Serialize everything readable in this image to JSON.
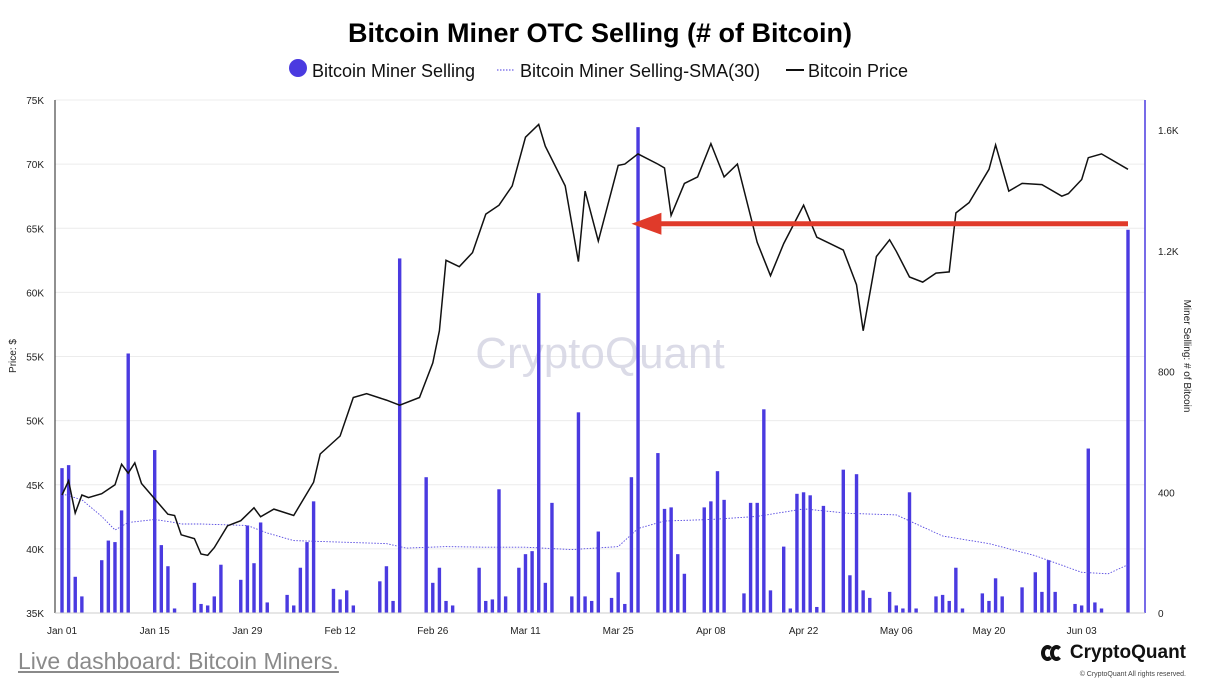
{
  "chart_data": {
    "type": "bar",
    "title": "Bitcoin Miner OTC Selling (# of Bitcoin)",
    "legend": [
      {
        "label": "Bitcoin Miner Selling",
        "kind": "bar",
        "color": "#4a3ae0"
      },
      {
        "label": "Bitcoin Miner Selling-SMA(30)",
        "kind": "dotted-line",
        "color": "#4a3ae0"
      },
      {
        "label": "Bitcoin Price",
        "kind": "line",
        "color": "#111111"
      }
    ],
    "legend_position": "top-center",
    "ylabel_left": "Price: $",
    "ylabel_right": "Miner Selling: # of Bitcoin",
    "left_axis": {
      "ticks": [
        35000,
        40000,
        45000,
        50000,
        55000,
        60000,
        65000,
        70000,
        75000
      ],
      "tick_labels": [
        "35K",
        "40K",
        "45K",
        "50K",
        "55K",
        "60K",
        "65K",
        "70K",
        "75K"
      ],
      "range": [
        35000,
        75000
      ]
    },
    "right_axis": {
      "ticks": [
        0,
        400,
        800,
        1200,
        1600
      ],
      "tick_labels": [
        "0",
        "400",
        "800",
        "1.2K",
        "1.6K"
      ],
      "range": [
        0,
        1700
      ]
    },
    "x_axis": {
      "range": [
        "2024-01-01",
        "2024-06-10"
      ],
      "ticks": [
        "2024-01-01",
        "2024-01-15",
        "2024-01-29",
        "2024-02-12",
        "2024-02-26",
        "2024-03-11",
        "2024-03-25",
        "2024-04-08",
        "2024-04-22",
        "2024-05-06",
        "2024-05-20",
        "2024-06-03"
      ],
      "tick_labels": [
        "Jan 01",
        "Jan 15",
        "Jan 29",
        "Feb 12",
        "Feb 26",
        "Mar 11",
        "Mar 25",
        "Apr 08",
        "Apr 22",
        "May 06",
        "May 20",
        "Jun 03"
      ]
    },
    "grid": "horizontal",
    "watermark": "CryptoQuant",
    "annotation": {
      "type": "arrow",
      "color": "#e03a2a",
      "from": "2024-06-10",
      "to": "2024-03-27",
      "value": 1270
    },
    "miner_selling": [
      {
        "x": "2024-01-01",
        "y": 480
      },
      {
        "x": "2024-01-02",
        "y": 490
      },
      {
        "x": "2024-01-03",
        "y": 120
      },
      {
        "x": "2024-01-04",
        "y": 55
      },
      {
        "x": "2024-01-07",
        "y": 175
      },
      {
        "x": "2024-01-08",
        "y": 240
      },
      {
        "x": "2024-01-09",
        "y": 235
      },
      {
        "x": "2024-01-10",
        "y": 340
      },
      {
        "x": "2024-01-11",
        "y": 860
      },
      {
        "x": "2024-01-15",
        "y": 540
      },
      {
        "x": "2024-01-16",
        "y": 225
      },
      {
        "x": "2024-01-17",
        "y": 155
      },
      {
        "x": "2024-01-18",
        "y": 15
      },
      {
        "x": "2024-01-21",
        "y": 100
      },
      {
        "x": "2024-01-22",
        "y": 30
      },
      {
        "x": "2024-01-23",
        "y": 25
      },
      {
        "x": "2024-01-24",
        "y": 55
      },
      {
        "x": "2024-01-25",
        "y": 160
      },
      {
        "x": "2024-01-28",
        "y": 110
      },
      {
        "x": "2024-01-29",
        "y": 290
      },
      {
        "x": "2024-01-30",
        "y": 165
      },
      {
        "x": "2024-01-31",
        "y": 300
      },
      {
        "x": "2024-02-01",
        "y": 35
      },
      {
        "x": "2024-02-04",
        "y": 60
      },
      {
        "x": "2024-02-05",
        "y": 25
      },
      {
        "x": "2024-02-06",
        "y": 150
      },
      {
        "x": "2024-02-07",
        "y": 235
      },
      {
        "x": "2024-02-08",
        "y": 370
      },
      {
        "x": "2024-02-11",
        "y": 80
      },
      {
        "x": "2024-02-12",
        "y": 45
      },
      {
        "x": "2024-02-13",
        "y": 75
      },
      {
        "x": "2024-02-14",
        "y": 25
      },
      {
        "x": "2024-02-18",
        "y": 105
      },
      {
        "x": "2024-02-19",
        "y": 155
      },
      {
        "x": "2024-02-20",
        "y": 40
      },
      {
        "x": "2024-02-21",
        "y": 1175
      },
      {
        "x": "2024-02-25",
        "y": 450
      },
      {
        "x": "2024-02-26",
        "y": 100
      },
      {
        "x": "2024-02-27",
        "y": 150
      },
      {
        "x": "2024-02-28",
        "y": 40
      },
      {
        "x": "2024-02-29",
        "y": 25
      },
      {
        "x": "2024-03-04",
        "y": 150
      },
      {
        "x": "2024-03-05",
        "y": 40
      },
      {
        "x": "2024-03-06",
        "y": 45
      },
      {
        "x": "2024-03-07",
        "y": 410
      },
      {
        "x": "2024-03-08",
        "y": 55
      },
      {
        "x": "2024-03-10",
        "y": 150
      },
      {
        "x": "2024-03-11",
        "y": 195
      },
      {
        "x": "2024-03-12",
        "y": 205
      },
      {
        "x": "2024-03-13",
        "y": 1060
      },
      {
        "x": "2024-03-14",
        "y": 100
      },
      {
        "x": "2024-03-15",
        "y": 365
      },
      {
        "x": "2024-03-18",
        "y": 55
      },
      {
        "x": "2024-03-19",
        "y": 665
      },
      {
        "x": "2024-03-20",
        "y": 55
      },
      {
        "x": "2024-03-21",
        "y": 40
      },
      {
        "x": "2024-03-22",
        "y": 270
      },
      {
        "x": "2024-03-24",
        "y": 50
      },
      {
        "x": "2024-03-25",
        "y": 135
      },
      {
        "x": "2024-03-26",
        "y": 30
      },
      {
        "x": "2024-03-27",
        "y": 450
      },
      {
        "x": "2024-03-28",
        "y": 1610
      },
      {
        "x": "2024-03-31",
        "y": 530
      },
      {
        "x": "2024-04-01",
        "y": 345
      },
      {
        "x": "2024-04-02",
        "y": 350
      },
      {
        "x": "2024-04-03",
        "y": 195
      },
      {
        "x": "2024-04-04",
        "y": 130
      },
      {
        "x": "2024-04-07",
        "y": 350
      },
      {
        "x": "2024-04-08",
        "y": 370
      },
      {
        "x": "2024-04-09",
        "y": 470
      },
      {
        "x": "2024-04-10",
        "y": 375
      },
      {
        "x": "2024-04-13",
        "y": 65
      },
      {
        "x": "2024-04-14",
        "y": 365
      },
      {
        "x": "2024-04-15",
        "y": 365
      },
      {
        "x": "2024-04-16",
        "y": 675
      },
      {
        "x": "2024-04-17",
        "y": 75
      },
      {
        "x": "2024-04-19",
        "y": 220
      },
      {
        "x": "2024-04-20",
        "y": 15
      },
      {
        "x": "2024-04-21",
        "y": 395
      },
      {
        "x": "2024-04-22",
        "y": 400
      },
      {
        "x": "2024-04-23",
        "y": 390
      },
      {
        "x": "2024-04-24",
        "y": 20
      },
      {
        "x": "2024-04-25",
        "y": 355
      },
      {
        "x": "2024-04-28",
        "y": 475
      },
      {
        "x": "2024-04-29",
        "y": 125
      },
      {
        "x": "2024-04-30",
        "y": 460
      },
      {
        "x": "2024-05-01",
        "y": 75
      },
      {
        "x": "2024-05-02",
        "y": 50
      },
      {
        "x": "2024-05-05",
        "y": 70
      },
      {
        "x": "2024-05-06",
        "y": 25
      },
      {
        "x": "2024-05-07",
        "y": 15
      },
      {
        "x": "2024-05-08",
        "y": 400
      },
      {
        "x": "2024-05-09",
        "y": 15
      },
      {
        "x": "2024-05-12",
        "y": 55
      },
      {
        "x": "2024-05-13",
        "y": 60
      },
      {
        "x": "2024-05-14",
        "y": 40
      },
      {
        "x": "2024-05-15",
        "y": 150
      },
      {
        "x": "2024-05-16",
        "y": 15
      },
      {
        "x": "2024-05-19",
        "y": 65
      },
      {
        "x": "2024-05-20",
        "y": 40
      },
      {
        "x": "2024-05-21",
        "y": 115
      },
      {
        "x": "2024-05-22",
        "y": 55
      },
      {
        "x": "2024-05-25",
        "y": 85
      },
      {
        "x": "2024-05-27",
        "y": 135
      },
      {
        "x": "2024-05-28",
        "y": 70
      },
      {
        "x": "2024-05-29",
        "y": 175
      },
      {
        "x": "2024-05-30",
        "y": 70
      },
      {
        "x": "2024-06-02",
        "y": 30
      },
      {
        "x": "2024-06-03",
        "y": 25
      },
      {
        "x": "2024-06-04",
        "y": 545
      },
      {
        "x": "2024-06-05",
        "y": 35
      },
      {
        "x": "2024-06-06",
        "y": 15
      },
      {
        "x": "2024-06-10",
        "y": 1270
      }
    ],
    "miner_selling_sma30": [
      {
        "x": "2024-01-01",
        "y": 395
      },
      {
        "x": "2024-01-04",
        "y": 375
      },
      {
        "x": "2024-01-07",
        "y": 320
      },
      {
        "x": "2024-01-09",
        "y": 275
      },
      {
        "x": "2024-01-11",
        "y": 300
      },
      {
        "x": "2024-01-15",
        "y": 310
      },
      {
        "x": "2024-01-18",
        "y": 300
      },
      {
        "x": "2024-01-19",
        "y": 295
      },
      {
        "x": "2024-01-22",
        "y": 295
      },
      {
        "x": "2024-01-29",
        "y": 290
      },
      {
        "x": "2024-02-01",
        "y": 265
      },
      {
        "x": "2024-02-05",
        "y": 240
      },
      {
        "x": "2024-02-12",
        "y": 235
      },
      {
        "x": "2024-02-19",
        "y": 230
      },
      {
        "x": "2024-02-22",
        "y": 215
      },
      {
        "x": "2024-02-28",
        "y": 220
      },
      {
        "x": "2024-03-05",
        "y": 218
      },
      {
        "x": "2024-03-11",
        "y": 218
      },
      {
        "x": "2024-03-18",
        "y": 210
      },
      {
        "x": "2024-03-25",
        "y": 220
      },
      {
        "x": "2024-03-28",
        "y": 280
      },
      {
        "x": "2024-04-01",
        "y": 305
      },
      {
        "x": "2024-04-08",
        "y": 310
      },
      {
        "x": "2024-04-15",
        "y": 320
      },
      {
        "x": "2024-04-22",
        "y": 345
      },
      {
        "x": "2024-04-29",
        "y": 330
      },
      {
        "x": "2024-05-06",
        "y": 325
      },
      {
        "x": "2024-05-13",
        "y": 255
      },
      {
        "x": "2024-05-20",
        "y": 230
      },
      {
        "x": "2024-05-27",
        "y": 190
      },
      {
        "x": "2024-06-03",
        "y": 135
      },
      {
        "x": "2024-06-07",
        "y": 130
      },
      {
        "x": "2024-06-10",
        "y": 160
      }
    ],
    "bitcoin_price": [
      {
        "x": "2024-01-01",
        "y": 44200
      },
      {
        "x": "2024-01-02",
        "y": 45300
      },
      {
        "x": "2024-01-03",
        "y": 42800
      },
      {
        "x": "2024-01-04",
        "y": 44200
      },
      {
        "x": "2024-01-05",
        "y": 44000
      },
      {
        "x": "2024-01-07",
        "y": 44300
      },
      {
        "x": "2024-01-09",
        "y": 45000
      },
      {
        "x": "2024-01-10",
        "y": 46600
      },
      {
        "x": "2024-01-11",
        "y": 45900
      },
      {
        "x": "2024-01-12",
        "y": 46700
      },
      {
        "x": "2024-01-13",
        "y": 45100
      },
      {
        "x": "2024-01-15",
        "y": 43900
      },
      {
        "x": "2024-01-17",
        "y": 42700
      },
      {
        "x": "2024-01-18",
        "y": 42600
      },
      {
        "x": "2024-01-19",
        "y": 41100
      },
      {
        "x": "2024-01-21",
        "y": 40800
      },
      {
        "x": "2024-01-22",
        "y": 39600
      },
      {
        "x": "2024-01-23",
        "y": 39500
      },
      {
        "x": "2024-01-24",
        "y": 40100
      },
      {
        "x": "2024-01-26",
        "y": 41800
      },
      {
        "x": "2024-01-28",
        "y": 42200
      },
      {
        "x": "2024-01-30",
        "y": 43200
      },
      {
        "x": "2024-01-31",
        "y": 42500
      },
      {
        "x": "2024-02-02",
        "y": 43100
      },
      {
        "x": "2024-02-05",
        "y": 42600
      },
      {
        "x": "2024-02-08",
        "y": 45200
      },
      {
        "x": "2024-02-09",
        "y": 47400
      },
      {
        "x": "2024-02-12",
        "y": 48800
      },
      {
        "x": "2024-02-14",
        "y": 51800
      },
      {
        "x": "2024-02-16",
        "y": 52100
      },
      {
        "x": "2024-02-19",
        "y": 51600
      },
      {
        "x": "2024-02-21",
        "y": 51200
      },
      {
        "x": "2024-02-24",
        "y": 51800
      },
      {
        "x": "2024-02-26",
        "y": 54500
      },
      {
        "x": "2024-02-27",
        "y": 57000
      },
      {
        "x": "2024-02-28",
        "y": 62500
      },
      {
        "x": "2024-03-01",
        "y": 62000
      },
      {
        "x": "2024-03-03",
        "y": 63100
      },
      {
        "x": "2024-03-05",
        "y": 66100
      },
      {
        "x": "2024-03-07",
        "y": 66800
      },
      {
        "x": "2024-03-09",
        "y": 68300
      },
      {
        "x": "2024-03-11",
        "y": 72100
      },
      {
        "x": "2024-03-13",
        "y": 73100
      },
      {
        "x": "2024-03-14",
        "y": 71400
      },
      {
        "x": "2024-03-17",
        "y": 68300
      },
      {
        "x": "2024-03-19",
        "y": 62400
      },
      {
        "x": "2024-03-20",
        "y": 67900
      },
      {
        "x": "2024-03-22",
        "y": 64000
      },
      {
        "x": "2024-03-25",
        "y": 69900
      },
      {
        "x": "2024-03-26",
        "y": 70000
      },
      {
        "x": "2024-03-28",
        "y": 70800
      },
      {
        "x": "2024-03-31",
        "y": 70000
      },
      {
        "x": "2024-04-01",
        "y": 69700
      },
      {
        "x": "2024-04-02",
        "y": 66000
      },
      {
        "x": "2024-04-04",
        "y": 68500
      },
      {
        "x": "2024-04-06",
        "y": 69000
      },
      {
        "x": "2024-04-08",
        "y": 71600
      },
      {
        "x": "2024-04-10",
        "y": 69000
      },
      {
        "x": "2024-04-12",
        "y": 70000
      },
      {
        "x": "2024-04-15",
        "y": 63900
      },
      {
        "x": "2024-04-17",
        "y": 61300
      },
      {
        "x": "2024-04-19",
        "y": 63800
      },
      {
        "x": "2024-04-22",
        "y": 66800
      },
      {
        "x": "2024-04-24",
        "y": 64300
      },
      {
        "x": "2024-04-26",
        "y": 63800
      },
      {
        "x": "2024-04-28",
        "y": 63300
      },
      {
        "x": "2024-04-30",
        "y": 60600
      },
      {
        "x": "2024-05-01",
        "y": 57000
      },
      {
        "x": "2024-05-03",
        "y": 62800
      },
      {
        "x": "2024-05-05",
        "y": 64100
      },
      {
        "x": "2024-05-06",
        "y": 63200
      },
      {
        "x": "2024-05-08",
        "y": 61200
      },
      {
        "x": "2024-05-10",
        "y": 60800
      },
      {
        "x": "2024-05-12",
        "y": 61500
      },
      {
        "x": "2024-05-14",
        "y": 61600
      },
      {
        "x": "2024-05-15",
        "y": 66200
      },
      {
        "x": "2024-05-17",
        "y": 67000
      },
      {
        "x": "2024-05-20",
        "y": 69600
      },
      {
        "x": "2024-05-21",
        "y": 71500
      },
      {
        "x": "2024-05-23",
        "y": 67900
      },
      {
        "x": "2024-05-25",
        "y": 68500
      },
      {
        "x": "2024-05-28",
        "y": 68400
      },
      {
        "x": "2024-05-31",
        "y": 67500
      },
      {
        "x": "2024-06-01",
        "y": 67700
      },
      {
        "x": "2024-06-03",
        "y": 68800
      },
      {
        "x": "2024-06-04",
        "y": 70500
      },
      {
        "x": "2024-06-06",
        "y": 70800
      },
      {
        "x": "2024-06-10",
        "y": 69600
      }
    ]
  },
  "footer": {
    "dashboard_link": "Live dashboard: Bitcoin Miners.",
    "brand_name": "CryptoQuant",
    "copyright": "© CryptoQuant All rights reserved."
  }
}
